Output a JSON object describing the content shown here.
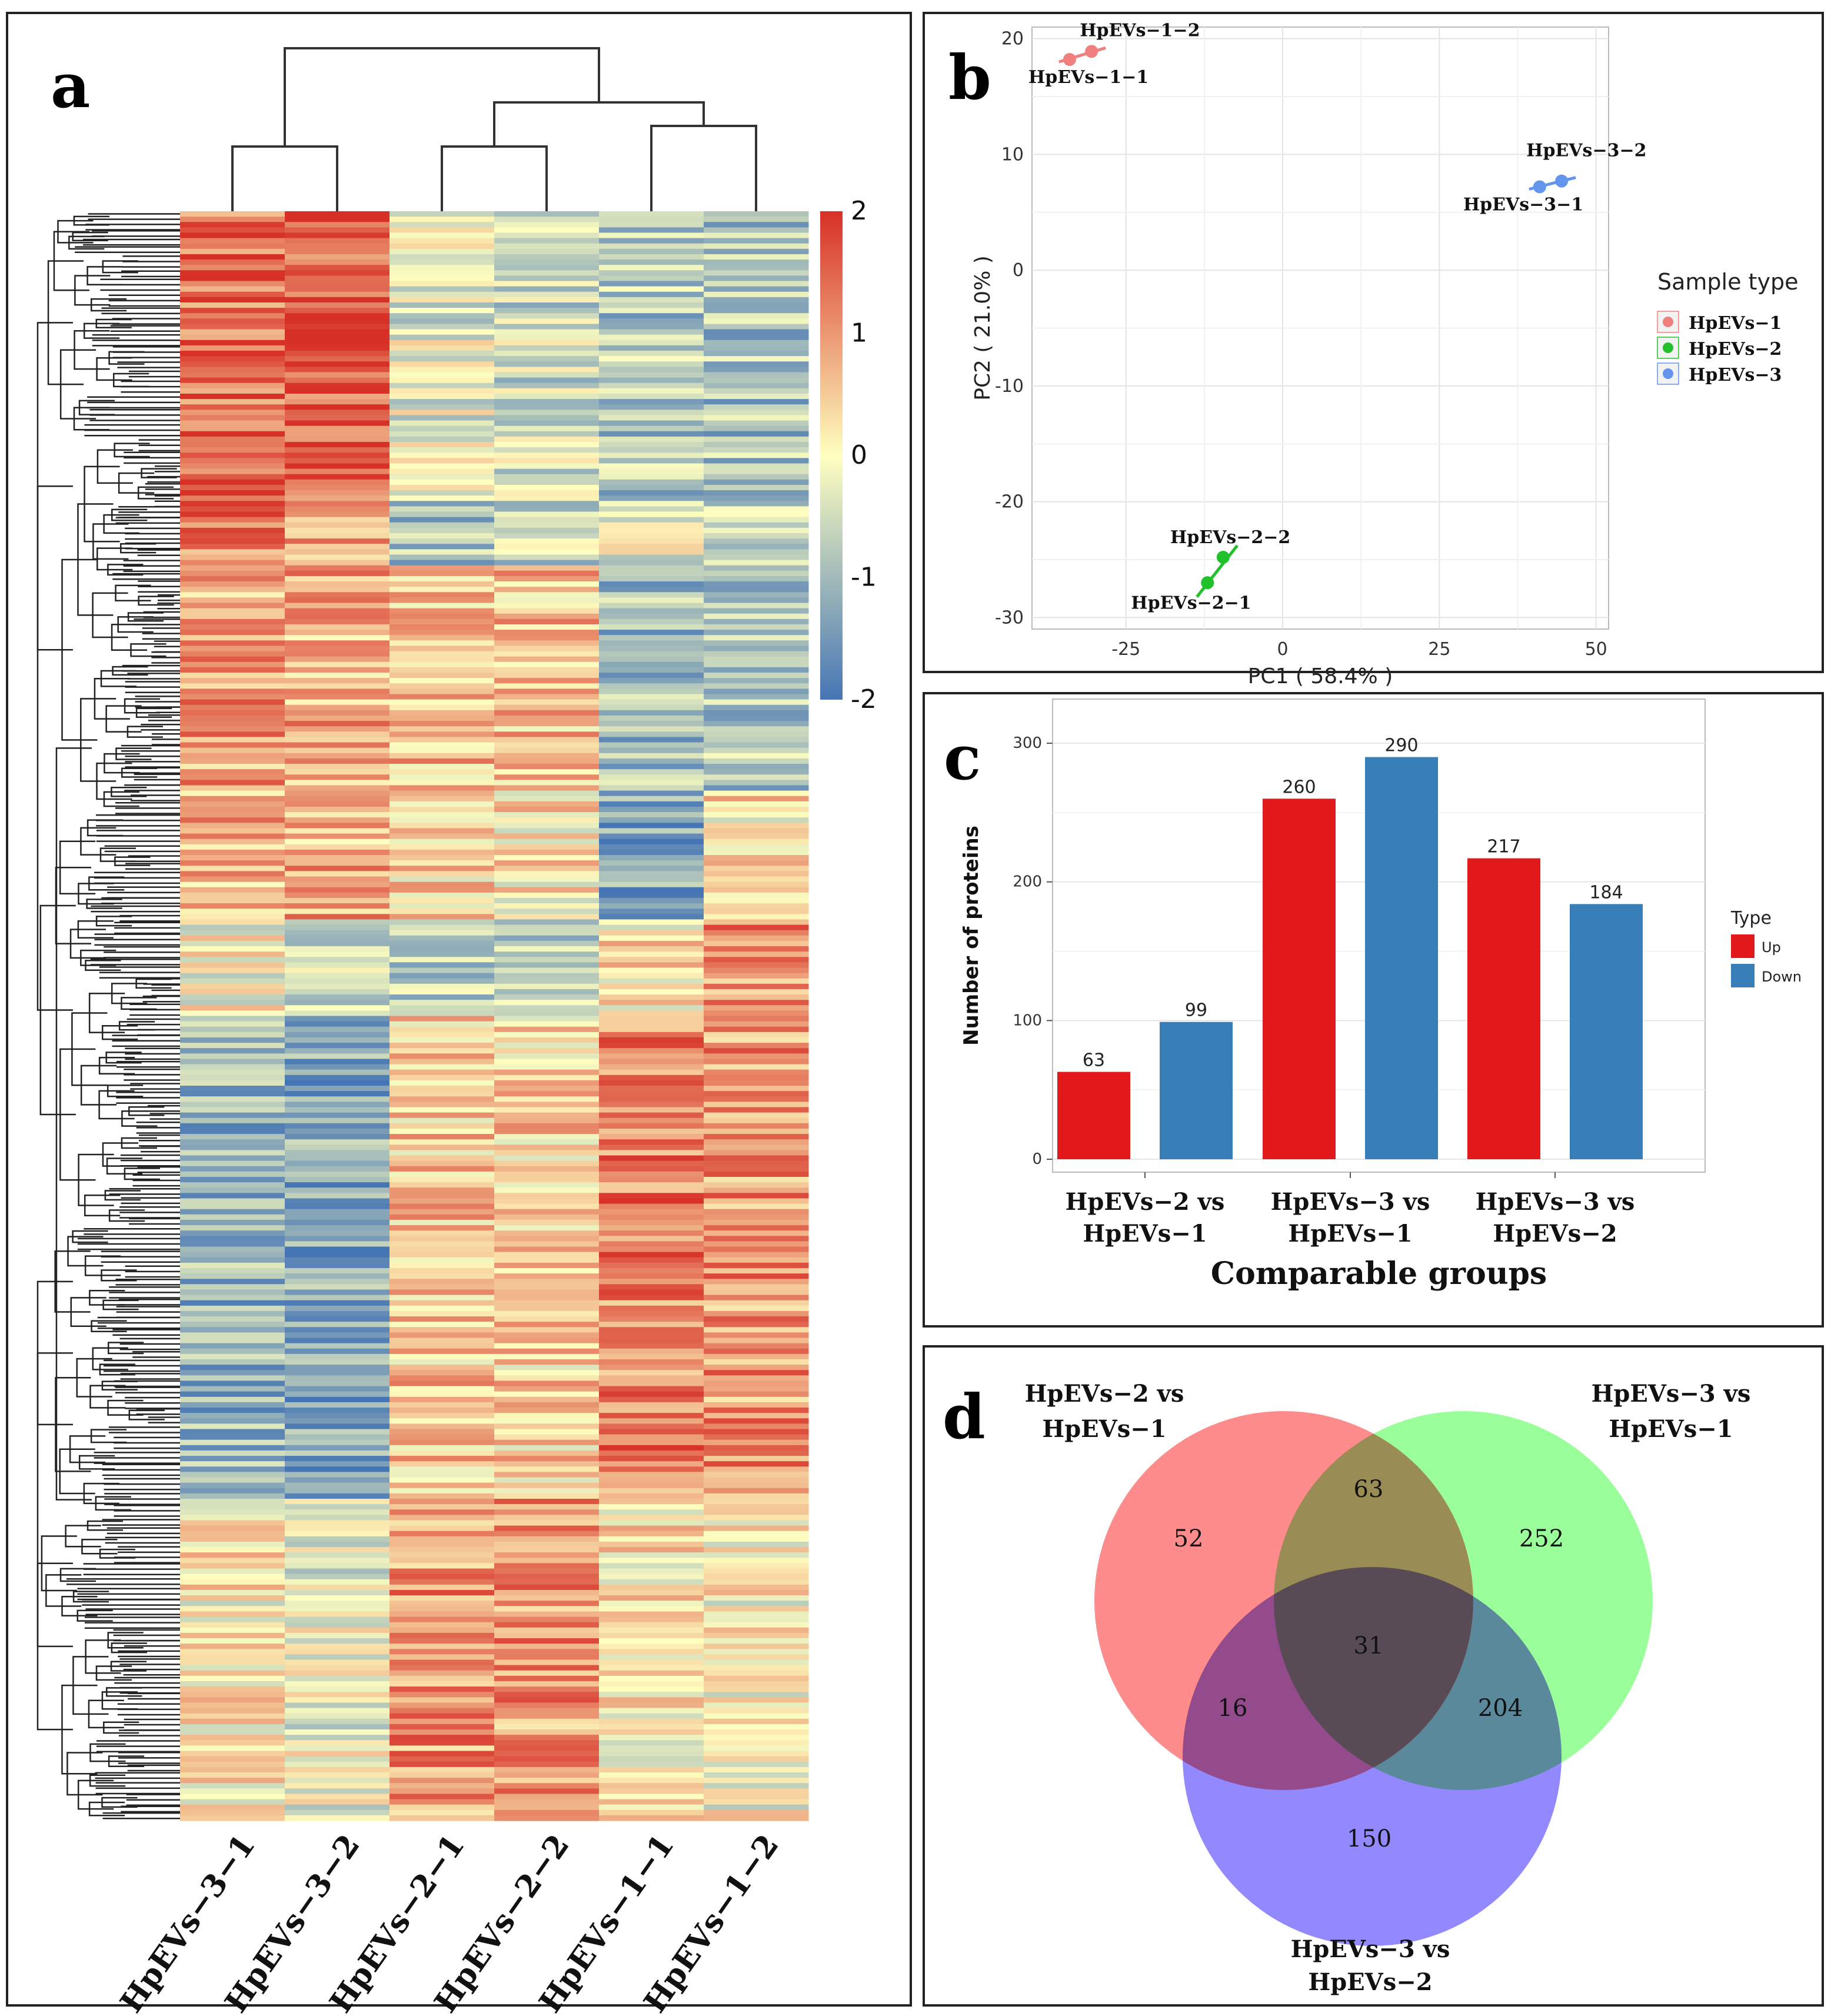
{
  "panels": {
    "a": {
      "letter": "a"
    },
    "b": {
      "letter": "b"
    },
    "c": {
      "letter": "c"
    },
    "d": {
      "letter": "d"
    }
  },
  "colors": {
    "heat_low": "#4575b4",
    "heat_mid": "#ffffbf",
    "heat_high": "#d73027",
    "pca_1": "#f08080",
    "pca_2": "#22c02a",
    "pca_3": "#6495ed",
    "up": "#e31a1c",
    "down": "#377eb8",
    "venn_1": "#ff6b6b",
    "venn_2": "#5cff5c",
    "venn_3": "#6a5cff"
  },
  "chart_data": [
    {
      "type": "heatmap",
      "panel": "a",
      "columns": [
        "HpEVs−3−1",
        "HpEVs−3−2",
        "HpEVs−2−1",
        "HpEVs−2−2",
        "HpEVs−1−1",
        "HpEVs−1−2"
      ],
      "colorbar": {
        "ticks": [
          "2",
          "1",
          "0",
          "-1",
          "-2"
        ],
        "range": [
          -2,
          2
        ]
      },
      "row_blocks": [
        {
          "frac": 0.18,
          "means": [
            1.4,
            1.6,
            -0.3,
            -0.5,
            -0.8,
            -0.9
          ]
        },
        {
          "frac": 0.04,
          "means": [
            1.2,
            1.0,
            -0.9,
            -0.6,
            -0.3,
            -0.4
          ]
        },
        {
          "frac": 0.14,
          "means": [
            0.9,
            0.8,
            0.6,
            0.6,
            -1.0,
            -0.8
          ]
        },
        {
          "frac": 0.08,
          "means": [
            0.7,
            0.8,
            0.4,
            0.2,
            -1.3,
            0.2
          ]
        },
        {
          "frac": 0.06,
          "means": [
            0.0,
            -0.4,
            -0.6,
            -0.8,
            0.2,
            1.1
          ]
        },
        {
          "frac": 0.3,
          "means": [
            -1.1,
            -1.3,
            0.5,
            0.4,
            1.2,
            1.0
          ]
        },
        {
          "frac": 0.2,
          "means": [
            0.1,
            -0.2,
            1.0,
            1.0,
            0.2,
            0.0
          ]
        }
      ]
    },
    {
      "type": "scatter",
      "panel": "b",
      "xlabel": "PC1 ( 58.4% )",
      "ylabel": "PC2 ( 21.0% )",
      "xlim": [
        -40,
        52
      ],
      "ylim": [
        -31,
        21
      ],
      "xticks": [
        "-25",
        "0",
        "25",
        "50"
      ],
      "xtick_values": [
        -25,
        0,
        25,
        50
      ],
      "yticks": [
        "20",
        "10",
        "0",
        "-10",
        "-20",
        "-30"
      ],
      "ytick_values": [
        20,
        10,
        0,
        -10,
        -20,
        -30
      ],
      "legend_title": "Sample type",
      "legend_position": "right",
      "series": [
        {
          "name": "HpEVs−1",
          "points": [
            {
              "label": "HpEVs−1−1",
              "x": -34,
              "y": 18.2
            },
            {
              "label": "HpEVs−1−2",
              "x": -30.5,
              "y": 18.9
            }
          ]
        },
        {
          "name": "HpEVs−2",
          "points": [
            {
              "label": "HpEVs−2−1",
              "x": -12,
              "y": -27
            },
            {
              "label": "HpEVs−2−2",
              "x": -9.5,
              "y": -24.8
            }
          ]
        },
        {
          "name": "HpEVs−3",
          "points": [
            {
              "label": "HpEVs−3−1",
              "x": 41,
              "y": 7.2
            },
            {
              "label": "HpEVs−3−2",
              "x": 44.5,
              "y": 7.7
            }
          ]
        }
      ]
    },
    {
      "type": "bar",
      "panel": "c",
      "xlabel": "Comparable groups",
      "ylabel": "Number of proteins",
      "ylim": [
        0,
        320
      ],
      "yticks": [
        "0",
        "100",
        "200",
        "300"
      ],
      "ytick_values": [
        0,
        100,
        200,
        300
      ],
      "categories": [
        {
          "line1": "HpEVs−2 vs",
          "line2": "HpEVs−1"
        },
        {
          "line1": "HpEVs−3 vs",
          "line2": "HpEVs−1"
        },
        {
          "line1": "HpEVs−3 vs",
          "line2": "HpEVs−2"
        }
      ],
      "legend_title": "Type",
      "series": [
        {
          "name": "Up",
          "values": [
            63,
            260,
            217
          ],
          "labels": [
            "63",
            "260",
            "217"
          ]
        },
        {
          "name": "Down",
          "values": [
            99,
            290,
            184
          ],
          "labels": [
            "99",
            "290",
            "184"
          ]
        }
      ]
    },
    {
      "type": "venn",
      "panel": "d",
      "sets": [
        {
          "line1": "HpEVs−2 vs",
          "line2": "HpEVs−1"
        },
        {
          "line1": "HpEVs−3 vs",
          "line2": "HpEVs−1"
        },
        {
          "line1": "HpEVs−3 vs",
          "line2": "HpEVs−2"
        }
      ],
      "regions": {
        "only_1": "52",
        "only_2": "252",
        "only_3": "150",
        "1_2": "63",
        "1_3": "16",
        "2_3": "204",
        "1_2_3": "31"
      }
    }
  ]
}
